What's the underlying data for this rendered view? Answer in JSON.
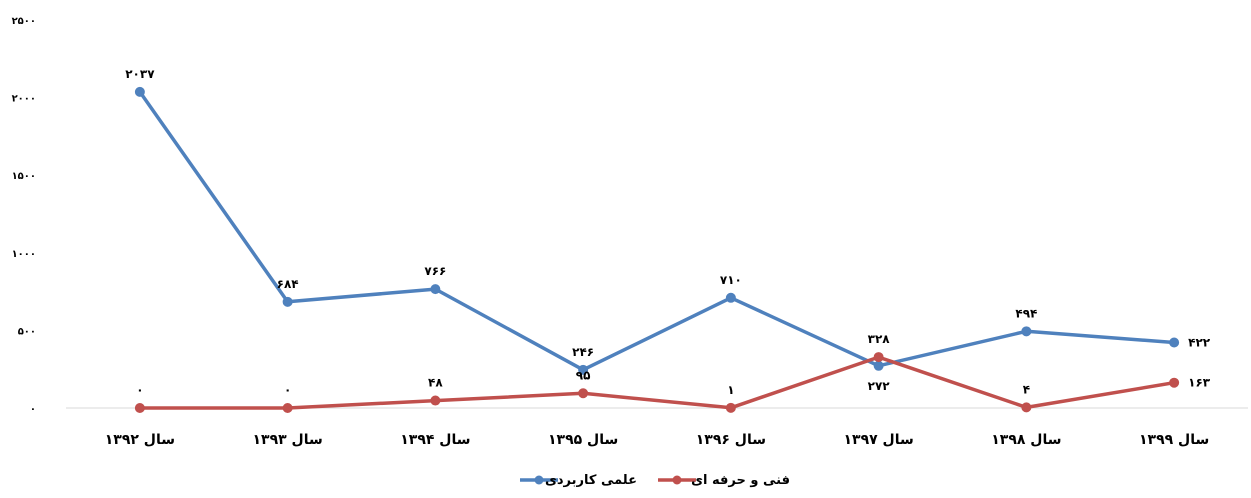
{
  "chart_data": {
    "type": "line",
    "categories": [
      "سال ۱۳۹۲",
      "سال ۱۳۹۳",
      "سال ۱۳۹۴",
      "سال ۱۳۹۵",
      "سال ۱۳۹۶",
      "سال ۱۳۹۷",
      "سال ۱۳۹۸",
      "سال ۱۳۹۹"
    ],
    "ylim": [
      0,
      2500
    ],
    "yticks": [
      0,
      500,
      1000,
      1500,
      2000,
      2500
    ],
    "ytick_labels": [
      "۰",
      "۵۰۰",
      "۱۰۰۰",
      "۱۵۰۰",
      "۲۰۰۰",
      "۲۵۰۰"
    ],
    "grid": false,
    "legend_position": "bottom",
    "series": [
      {
        "name": "علمی کاربردی",
        "color": "#4f81bd",
        "values": [
          2037,
          684,
          766,
          246,
          710,
          272,
          494,
          422
        ],
        "labels": [
          "۲۰۳۷",
          "۶۸۴",
          "۷۶۶",
          "۲۴۶",
          "۷۱۰",
          "۲۷۲",
          "۴۹۴",
          "۴۲۲"
        ],
        "label_pos": [
          "above",
          "above",
          "above",
          "above",
          "above",
          "below",
          "above",
          "right"
        ]
      },
      {
        "name": "فنی و حرفه ای",
        "color": "#c0504d",
        "values": [
          0,
          0,
          48,
          95,
          1,
          328,
          4,
          163
        ],
        "labels": [
          "۰",
          "۰",
          "۴۸",
          "۹۵",
          "۱",
          "۳۲۸",
          "۴",
          "۱۶۳"
        ],
        "label_pos": [
          "above",
          "above",
          "above",
          "above",
          "above",
          "above",
          "above",
          "right"
        ]
      }
    ]
  }
}
